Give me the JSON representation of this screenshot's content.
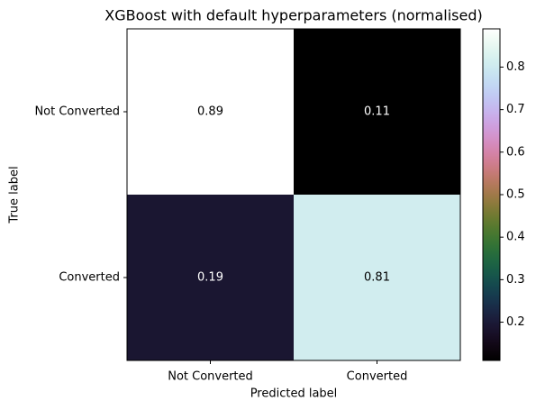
{
  "chart_data": {
    "type": "heatmap",
    "title": "XGBoost with default hyperparameters (normalised)",
    "x_label": "Predicted label",
    "y_label": "True label",
    "x_categories": [
      "Not Converted",
      "Converted"
    ],
    "y_categories": [
      "Not Converted",
      "Converted"
    ],
    "values": [
      [
        0.89,
        0.11
      ],
      [
        0.19,
        0.81
      ]
    ],
    "colormap": "cubehelix",
    "clim": [
      0.11,
      0.89
    ],
    "cticks": [
      0.2,
      0.3,
      0.4,
      0.5,
      0.6,
      0.7,
      0.8
    ]
  }
}
